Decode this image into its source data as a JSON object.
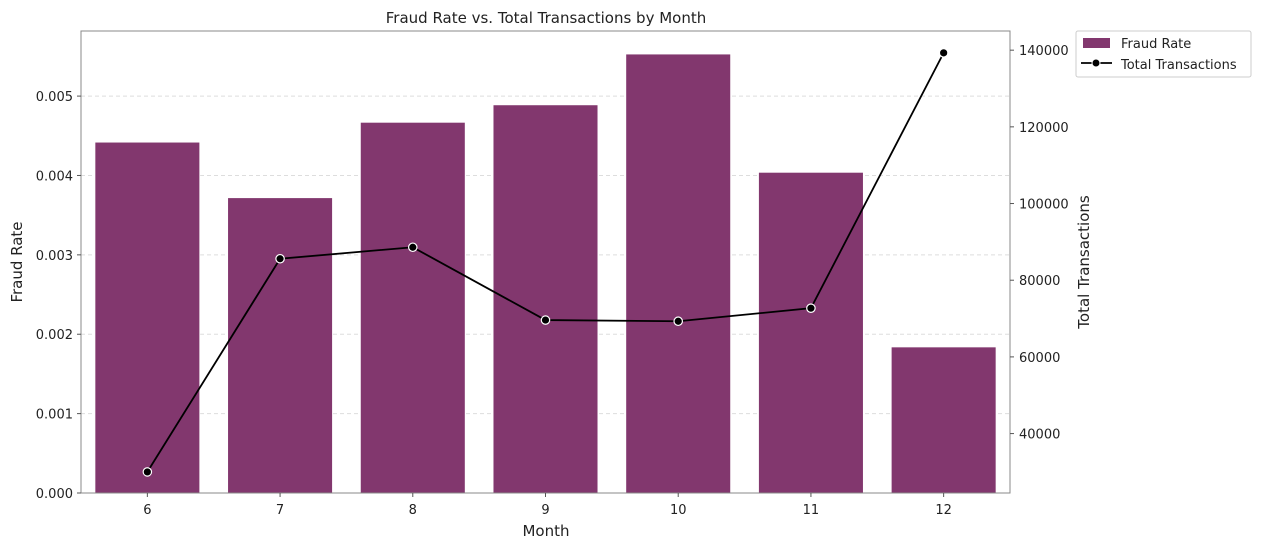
{
  "chart_data": {
    "type": "bar",
    "title": "Fraud Rate vs. Total Transactions by Month",
    "xlabel": "Month",
    "ylabel": "Fraud Rate",
    "y2label": "Total Transactions",
    "categories": [
      "6",
      "7",
      "8",
      "9",
      "10",
      "11",
      "12"
    ],
    "series": [
      {
        "name": "Fraud Rate",
        "kind": "bar",
        "axis": "left",
        "values": [
          0.00442,
          0.00372,
          0.00467,
          0.00489,
          0.00553,
          0.00404,
          0.00184
        ]
      },
      {
        "name": "Total Transactions",
        "kind": "line",
        "axis": "right",
        "values": [
          30000,
          85600,
          88600,
          69600,
          69300,
          72700,
          139300
        ]
      }
    ],
    "ylim": [
      0,
      0.00582
    ],
    "y_ticks": [
      "0.000",
      "0.001",
      "0.002",
      "0.003",
      "0.004",
      "0.005"
    ],
    "y2lim": [
      24500,
      145000
    ],
    "y2_ticks": [
      "40000",
      "60000",
      "80000",
      "100000",
      "120000",
      "140000"
    ],
    "grid": "horizontal dashed",
    "legend": "upper-right outside",
    "colors": {
      "bar_fill": "#82376e",
      "bar_edge": "#ffffff",
      "line": "#000000",
      "marker_fill": "#000000",
      "marker_edge": "#ffffff",
      "grid": "#dddddd",
      "frame": "#888888"
    }
  }
}
